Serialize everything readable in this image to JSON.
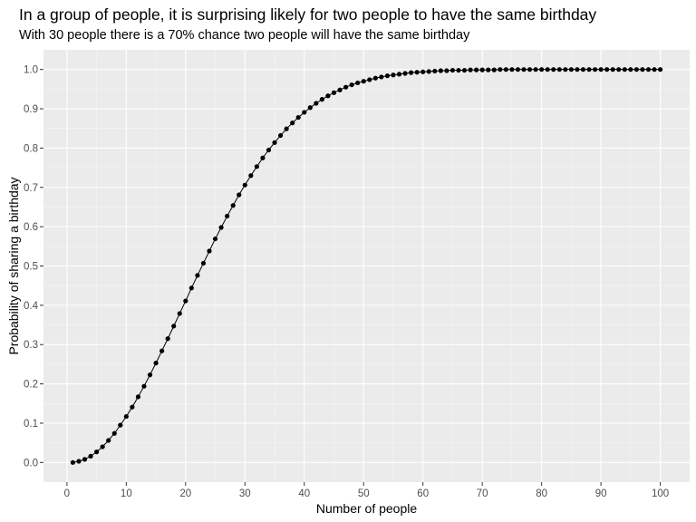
{
  "chart_data": {
    "type": "line",
    "title": "In a group of people, it is surprising likely for two people to have the same birthday",
    "subtitle": "With 30 people there is a 70% chance two people will have the same birthday",
    "xlabel": "Number of people",
    "ylabel": "Probability of sharing a birthday",
    "xlim": [
      -3.95,
      104.95
    ],
    "ylim": [
      -0.05,
      1.05
    ],
    "x_ticks": [
      0,
      10,
      20,
      30,
      40,
      50,
      60,
      70,
      80,
      90,
      100
    ],
    "x_tick_labels": [
      "0",
      "10",
      "20",
      "30",
      "40",
      "50",
      "60",
      "70",
      "80",
      "90",
      "100"
    ],
    "y_ticks": [
      0.0,
      0.1,
      0.2,
      0.3,
      0.4,
      0.5,
      0.6,
      0.7,
      0.8,
      0.9,
      1.0
    ],
    "y_tick_labels": [
      "0.0",
      "0.1",
      "0.2",
      "0.3",
      "0.4",
      "0.5",
      "0.6",
      "0.7",
      "0.8",
      "0.9",
      "1.0"
    ],
    "grid": true,
    "legend": "none",
    "colors": {
      "panel_background": "#ebebeb",
      "grid_major": "#ffffff",
      "grid_minor": "#f5f5f5",
      "series": "#000000",
      "tick_label": "#4d4d4d"
    },
    "series": [
      {
        "x": [
          1,
          2,
          3,
          4,
          5,
          6,
          7,
          8,
          9,
          10,
          11,
          12,
          13,
          14,
          15,
          16,
          17,
          18,
          19,
          20,
          21,
          22,
          23,
          24,
          25,
          26,
          27,
          28,
          29,
          30,
          31,
          32,
          33,
          34,
          35,
          36,
          37,
          38,
          39,
          40,
          41,
          42,
          43,
          44,
          45,
          46,
          47,
          48,
          49,
          50,
          51,
          52,
          53,
          54,
          55,
          56,
          57,
          58,
          59,
          60,
          61,
          62,
          63,
          64,
          65,
          66,
          67,
          68,
          69,
          70,
          71,
          72,
          73,
          74,
          75,
          76,
          77,
          78,
          79,
          80,
          81,
          82,
          83,
          84,
          85,
          86,
          87,
          88,
          89,
          90,
          91,
          92,
          93,
          94,
          95,
          96,
          97,
          98,
          99,
          100
        ],
        "y": [
          0.0,
          0.003,
          0.008,
          0.016,
          0.027,
          0.04,
          0.056,
          0.074,
          0.095,
          0.117,
          0.141,
          0.167,
          0.194,
          0.223,
          0.253,
          0.284,
          0.315,
          0.347,
          0.379,
          0.411,
          0.444,
          0.476,
          0.507,
          0.538,
          0.569,
          0.598,
          0.627,
          0.654,
          0.681,
          0.706,
          0.73,
          0.753,
          0.775,
          0.795,
          0.814,
          0.832,
          0.849,
          0.864,
          0.878,
          0.891,
          0.903,
          0.914,
          0.924,
          0.933,
          0.941,
          0.948,
          0.955,
          0.961,
          0.966,
          0.97,
          0.974,
          0.978,
          0.981,
          0.984,
          0.986,
          0.988,
          0.99,
          0.992,
          0.993,
          0.994,
          0.995,
          0.996,
          0.997,
          0.997,
          0.998,
          0.998,
          0.998,
          0.999,
          0.999,
          0.999,
          0.999,
          0.999,
          1.0,
          1.0,
          1.0,
          1.0,
          1.0,
          1.0,
          1.0,
          1.0,
          1.0,
          1.0,
          1.0,
          1.0,
          1.0,
          1.0,
          1.0,
          1.0,
          1.0,
          1.0,
          1.0,
          1.0,
          1.0,
          1.0,
          1.0,
          1.0,
          1.0,
          1.0,
          1.0,
          1.0
        ]
      }
    ]
  }
}
